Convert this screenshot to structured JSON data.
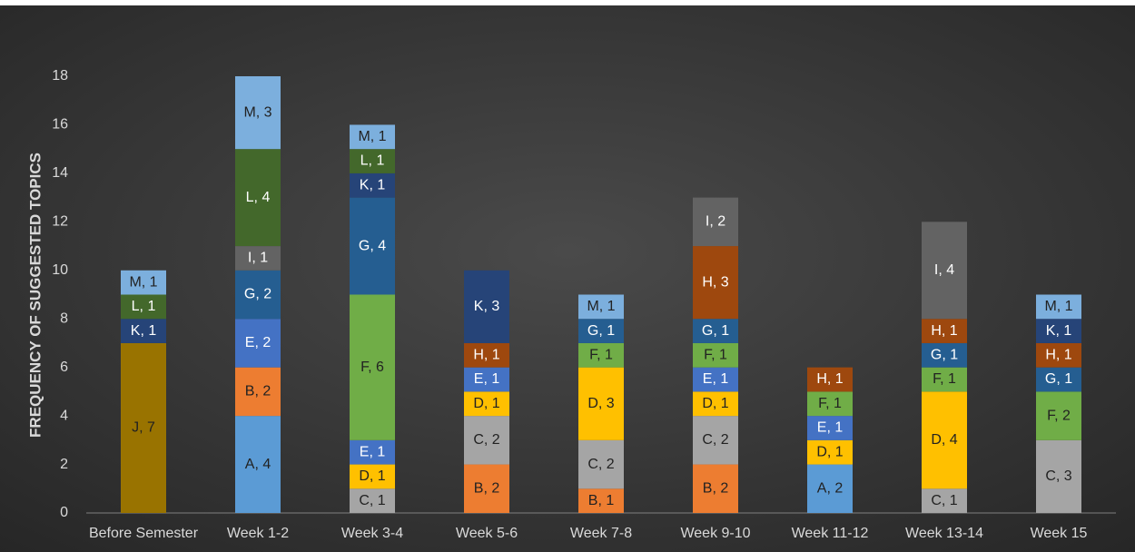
{
  "chart_data": {
    "type": "stacked_bar",
    "y_label": "FREQUENCY OF SUGGESTED TOPICS",
    "categories": [
      "Before Semester",
      "Week 1-2",
      "Week 3-4",
      "Week 5-6",
      "Week 7-8",
      "Week 9-10",
      "Week 11-12",
      "Week 13-14",
      "Week 15"
    ],
    "ylim": [
      0,
      18
    ],
    "yticks": [
      0,
      2,
      4,
      6,
      8,
      10,
      12,
      14,
      16,
      18
    ],
    "grid": false,
    "series": [
      {
        "name": "A",
        "color": "#5b9bd5",
        "label_color": "#222222",
        "values": [
          null,
          4,
          null,
          null,
          null,
          null,
          2,
          null,
          null
        ],
        "value_labels": [
          null,
          "A, 4",
          null,
          null,
          null,
          null,
          "A, 2",
          null,
          null
        ]
      },
      {
        "name": "B",
        "color": "#ed7d31",
        "label_color": "#222222",
        "values": [
          null,
          2,
          null,
          2,
          1,
          2,
          null,
          null,
          null
        ],
        "value_labels": [
          null,
          "B, 2",
          null,
          "B, 2",
          "B, 1",
          "B, 2",
          null,
          null,
          null
        ]
      },
      {
        "name": "C",
        "color": "#a5a5a5",
        "label_color": "#222222",
        "values": [
          null,
          null,
          1,
          2,
          2,
          2,
          null,
          1,
          3
        ],
        "value_labels": [
          null,
          null,
          "C, 1",
          "C, 2",
          "C, 2",
          "C, 2",
          null,
          "C, 1",
          "C, 3"
        ]
      },
      {
        "name": "D",
        "color": "#ffc000",
        "label_color": "#222222",
        "values": [
          null,
          null,
          1,
          1,
          3,
          1,
          1,
          4,
          null
        ],
        "value_labels": [
          null,
          null,
          "D, 1",
          "D, 1",
          "D, 3",
          "D, 1",
          "D, 1",
          "D, 4",
          null
        ]
      },
      {
        "name": "E",
        "color": "#4472c4",
        "label_color": "#ffffff",
        "values": [
          null,
          2,
          1,
          1,
          null,
          1,
          1,
          null,
          null
        ],
        "value_labels": [
          null,
          "E, 2",
          "E, 1",
          "E, 1",
          null,
          "E, 1",
          "E, 1",
          null,
          null
        ]
      },
      {
        "name": "F",
        "color": "#70ad47",
        "label_color": "#222222",
        "values": [
          null,
          null,
          6,
          null,
          1,
          1,
          1,
          1,
          2
        ],
        "value_labels": [
          null,
          null,
          "F, 6",
          null,
          "F, 1",
          "F, 1",
          "F, 1",
          "F, 1",
          "F, 2"
        ]
      },
      {
        "name": "G",
        "color": "#255e91",
        "label_color": "#ffffff",
        "values": [
          null,
          2,
          4,
          null,
          1,
          1,
          null,
          1,
          1
        ],
        "value_labels": [
          null,
          "G, 2",
          "G, 4",
          null,
          "G, 1",
          "G, 1",
          null,
          "G, 1",
          "G, 1"
        ]
      },
      {
        "name": "H",
        "color": "#9e480e",
        "label_color": "#ffffff",
        "values": [
          null,
          null,
          null,
          1,
          null,
          3,
          1,
          1,
          1
        ],
        "value_labels": [
          null,
          null,
          null,
          "H, 1",
          null,
          "H, 3",
          "H, 1",
          "H, 1",
          "H, 1"
        ]
      },
      {
        "name": "I",
        "color": "#636363",
        "label_color": "#ffffff",
        "values": [
          null,
          1,
          null,
          null,
          null,
          2,
          null,
          4,
          null
        ],
        "value_labels": [
          null,
          "I, 1",
          null,
          null,
          null,
          "I, 2",
          null,
          "I, 4",
          null
        ]
      },
      {
        "name": "J",
        "color": "#997300",
        "label_color": "#222222",
        "values": [
          7,
          null,
          null,
          null,
          null,
          null,
          null,
          null,
          null
        ],
        "value_labels": [
          "J, 7",
          null,
          null,
          null,
          null,
          null,
          null,
          null,
          null
        ]
      },
      {
        "name": "K",
        "color": "#264478",
        "label_color": "#ffffff",
        "values": [
          1,
          null,
          1,
          3,
          null,
          null,
          null,
          null,
          1
        ],
        "value_labels": [
          "K, 1",
          null,
          "K, 1",
          "K, 3",
          null,
          null,
          null,
          null,
          "K, 1"
        ]
      },
      {
        "name": "L",
        "color": "#43682b",
        "label_color": "#ffffff",
        "values": [
          1,
          4,
          1,
          null,
          null,
          null,
          null,
          null,
          null
        ],
        "value_labels": [
          "L, 1",
          "L, 4",
          "L, 1",
          null,
          null,
          null,
          null,
          null,
          null
        ]
      },
      {
        "name": "M",
        "color": "#7cafdd",
        "label_color": "#222222",
        "values": [
          1,
          3,
          1,
          null,
          1,
          null,
          null,
          null,
          1
        ],
        "value_labels": [
          "M, 1",
          "M, 3",
          "M, 1",
          null,
          "M, 1",
          null,
          null,
          null,
          "M, 1"
        ]
      }
    ]
  }
}
